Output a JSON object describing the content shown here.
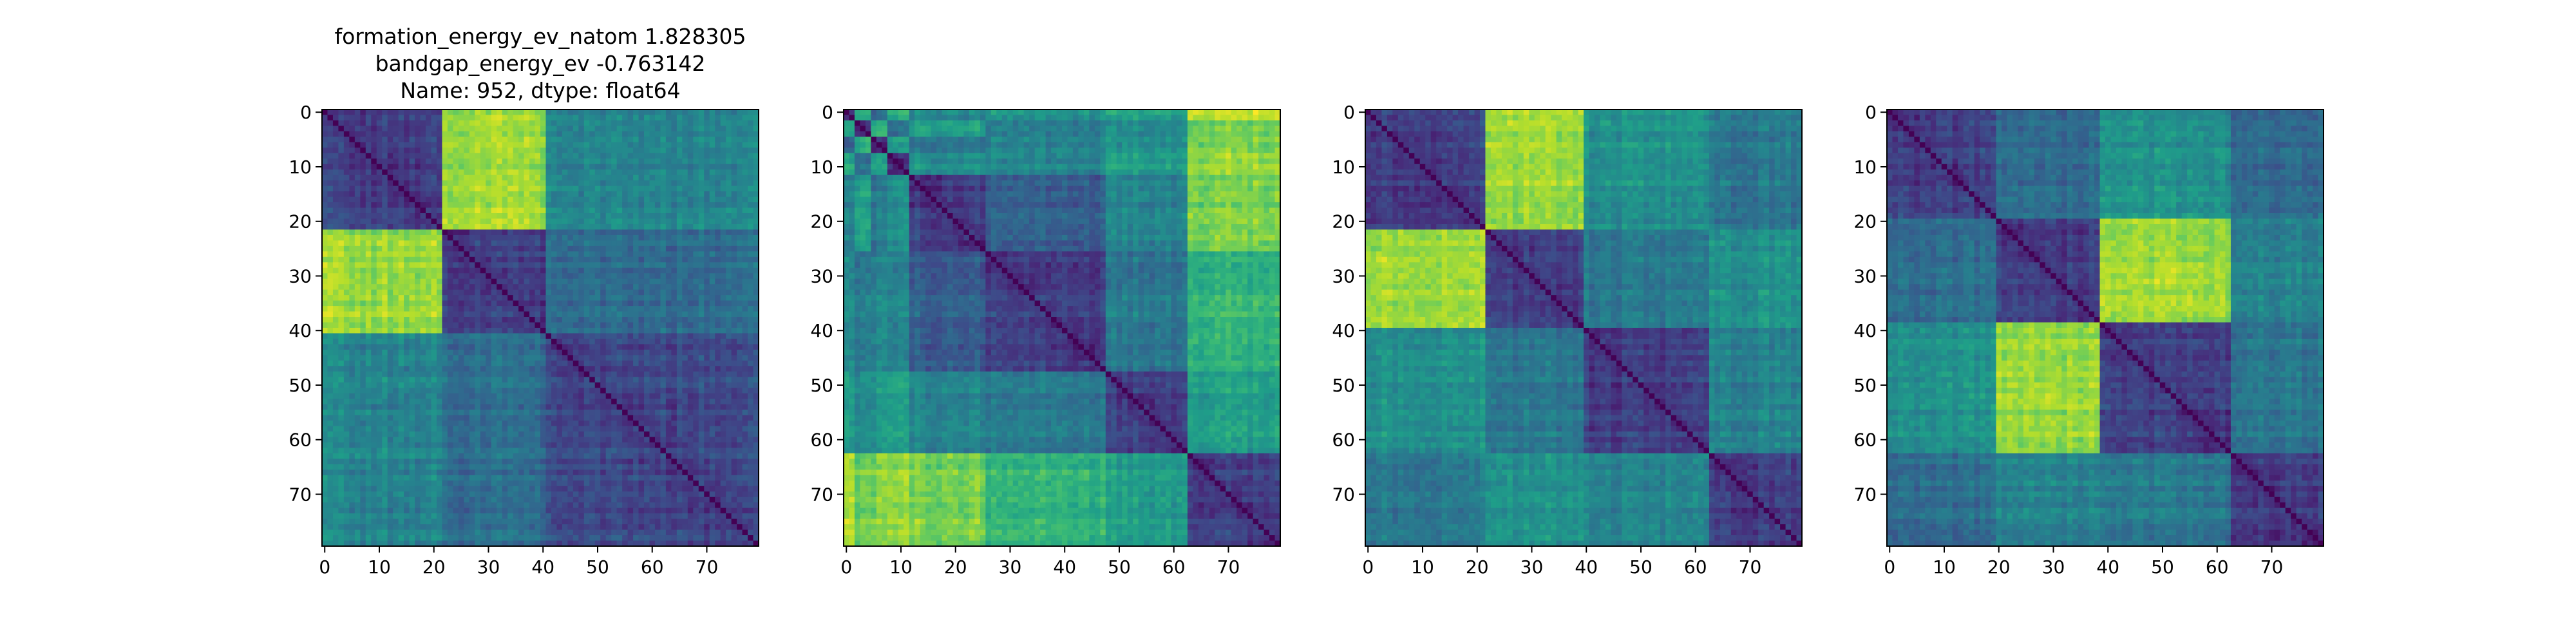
{
  "figure": {
    "title_lines": [
      "formation_energy_ev_natom    1.828305",
      "bandgap_energy_ev          -0.763142",
      "Name: 952, dtype: float64"
    ]
  },
  "chart_data": [
    {
      "type": "heatmap",
      "colormap": "viridis",
      "matrix_size": 80,
      "block_boundaries": [
        0,
        22,
        41,
        80
      ],
      "block_levels": [
        [
          0.2,
          0.85,
          0.45
        ],
        [
          0.85,
          0.2,
          0.35
        ],
        [
          0.45,
          0.35,
          0.22
        ]
      ],
      "xticks": [
        0,
        10,
        20,
        30,
        40,
        50,
        60,
        70
      ],
      "yticks": [
        0,
        10,
        20,
        30,
        40,
        50,
        60,
        70
      ],
      "xlim": [
        -0.5,
        79.5
      ],
      "ylim": [
        79.5,
        -0.5
      ],
      "grid": false
    },
    {
      "type": "heatmap",
      "colormap": "viridis",
      "matrix_size": 80,
      "block_boundaries": [
        0,
        2,
        5,
        8,
        12,
        26,
        48,
        63,
        80
      ],
      "block_levels": [
        [
          0.2,
          0.55,
          0.3,
          0.6,
          0.45,
          0.5,
          0.55,
          0.9
        ],
        [
          0.55,
          0.15,
          0.6,
          0.35,
          0.55,
          0.4,
          0.45,
          0.75
        ],
        [
          0.3,
          0.6,
          0.15,
          0.55,
          0.4,
          0.45,
          0.5,
          0.8
        ],
        [
          0.6,
          0.35,
          0.55,
          0.15,
          0.5,
          0.45,
          0.55,
          0.85
        ],
        [
          0.45,
          0.55,
          0.4,
          0.5,
          0.2,
          0.3,
          0.45,
          0.8
        ],
        [
          0.5,
          0.4,
          0.45,
          0.45,
          0.3,
          0.2,
          0.4,
          0.65
        ],
        [
          0.55,
          0.45,
          0.5,
          0.55,
          0.45,
          0.4,
          0.2,
          0.55
        ],
        [
          0.9,
          0.75,
          0.8,
          0.85,
          0.8,
          0.65,
          0.55,
          0.2
        ]
      ],
      "xticks": [
        0,
        10,
        20,
        30,
        40,
        50,
        60,
        70
      ],
      "yticks": [
        0,
        10,
        20,
        30,
        40,
        50,
        60,
        70
      ],
      "xlim": [
        -0.5,
        79.5
      ],
      "ylim": [
        79.5,
        -0.5
      ],
      "grid": false
    },
    {
      "type": "heatmap",
      "colormap": "viridis",
      "matrix_size": 80,
      "block_boundaries": [
        0,
        22,
        40,
        63,
        80
      ],
      "block_levels": [
        [
          0.2,
          0.85,
          0.5,
          0.4
        ],
        [
          0.85,
          0.2,
          0.4,
          0.5
        ],
        [
          0.5,
          0.4,
          0.2,
          0.45
        ],
        [
          0.4,
          0.5,
          0.45,
          0.2
        ]
      ],
      "xticks": [
        0,
        10,
        20,
        30,
        40,
        50,
        60,
        70
      ],
      "yticks": [
        0,
        10,
        20,
        30,
        40,
        50,
        60,
        70
      ],
      "xlim": [
        -0.5,
        79.5
      ],
      "ylim": [
        79.5,
        -0.5
      ],
      "grid": false
    },
    {
      "type": "heatmap",
      "colormap": "viridis",
      "matrix_size": 80,
      "block_boundaries": [
        0,
        20,
        39,
        63,
        80
      ],
      "block_levels": [
        [
          0.2,
          0.35,
          0.5,
          0.35
        ],
        [
          0.35,
          0.2,
          0.85,
          0.45
        ],
        [
          0.5,
          0.85,
          0.2,
          0.4
        ],
        [
          0.35,
          0.45,
          0.4,
          0.2
        ]
      ],
      "xticks": [
        0,
        10,
        20,
        30,
        40,
        50,
        60,
        70
      ],
      "yticks": [
        0,
        10,
        20,
        30,
        40,
        50,
        60,
        70
      ],
      "xlim": [
        -0.5,
        79.5
      ],
      "ylim": [
        79.5,
        -0.5
      ],
      "grid": false
    }
  ]
}
